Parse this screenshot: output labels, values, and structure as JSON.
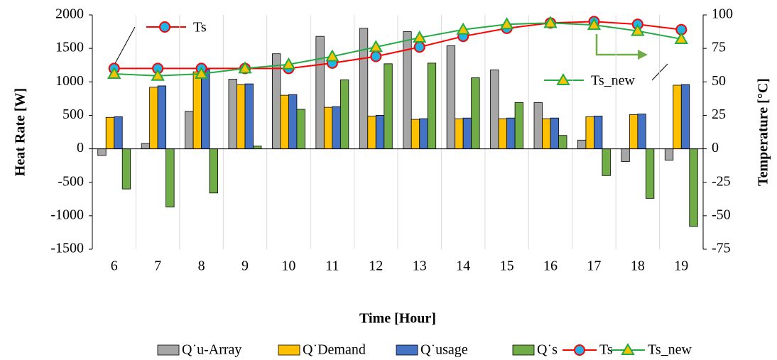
{
  "chart_data": {
    "type": "bar",
    "categories": [
      "6",
      "7",
      "8",
      "9",
      "10",
      "11",
      "12",
      "13",
      "14",
      "15",
      "16",
      "17",
      "18",
      "19"
    ],
    "series": [
      {
        "name": "Q˙u-Array",
        "color": "#a6a6a6",
        "values": [
          -100,
          80,
          560,
          1040,
          1420,
          1680,
          1800,
          1750,
          1540,
          1180,
          690,
          130,
          -190,
          -170
        ]
      },
      {
        "name": "Q˙Demand",
        "color": "#ffc000",
        "values": [
          470,
          920,
          1150,
          960,
          800,
          620,
          490,
          440,
          450,
          450,
          450,
          480,
          510,
          950
        ]
      },
      {
        "name": "Q˙usage",
        "color": "#4472c4",
        "values": [
          480,
          940,
          1190,
          970,
          810,
          630,
          500,
          450,
          460,
          460,
          460,
          490,
          520,
          960
        ]
      },
      {
        "name": "Q˙s",
        "color": "#70ad47",
        "values": [
          -600,
          -870,
          -660,
          40,
          590,
          1030,
          1270,
          1280,
          1060,
          690,
          200,
          -400,
          -740,
          -1160
        ]
      },
      {
        "name": "Ts",
        "type": "line",
        "axis": "y2",
        "color": "#ff0000",
        "marker_color": "#1fb4e6",
        "values": [
          60,
          60,
          60,
          60,
          60,
          64,
          69,
          76,
          84,
          90,
          94,
          95,
          93,
          89
        ]
      },
      {
        "name": "Ts_new",
        "type": "line",
        "axis": "y2",
        "color": "#22aa44",
        "marker_color": "#f5c400",
        "values": [
          56,
          54.5,
          56,
          60,
          63,
          69,
          76,
          83,
          89,
          93,
          94,
          92.5,
          88,
          82
        ]
      }
    ],
    "ylim": [
      -1500,
      2000
    ],
    "yticks": [
      -1500,
      -1000,
      -500,
      0,
      500,
      1000,
      1500,
      2000
    ],
    "y2lim": [
      -75,
      100
    ],
    "y2ticks": [
      -75,
      -50,
      -25,
      0,
      25,
      50,
      75,
      100
    ],
    "xlabel": "Time [Hour]",
    "ylabel": "Heat Rate [W]",
    "y2label": "Temperature [°C]",
    "annotations": [
      "Ts",
      "Ts_new"
    ],
    "legend": "bottom"
  }
}
